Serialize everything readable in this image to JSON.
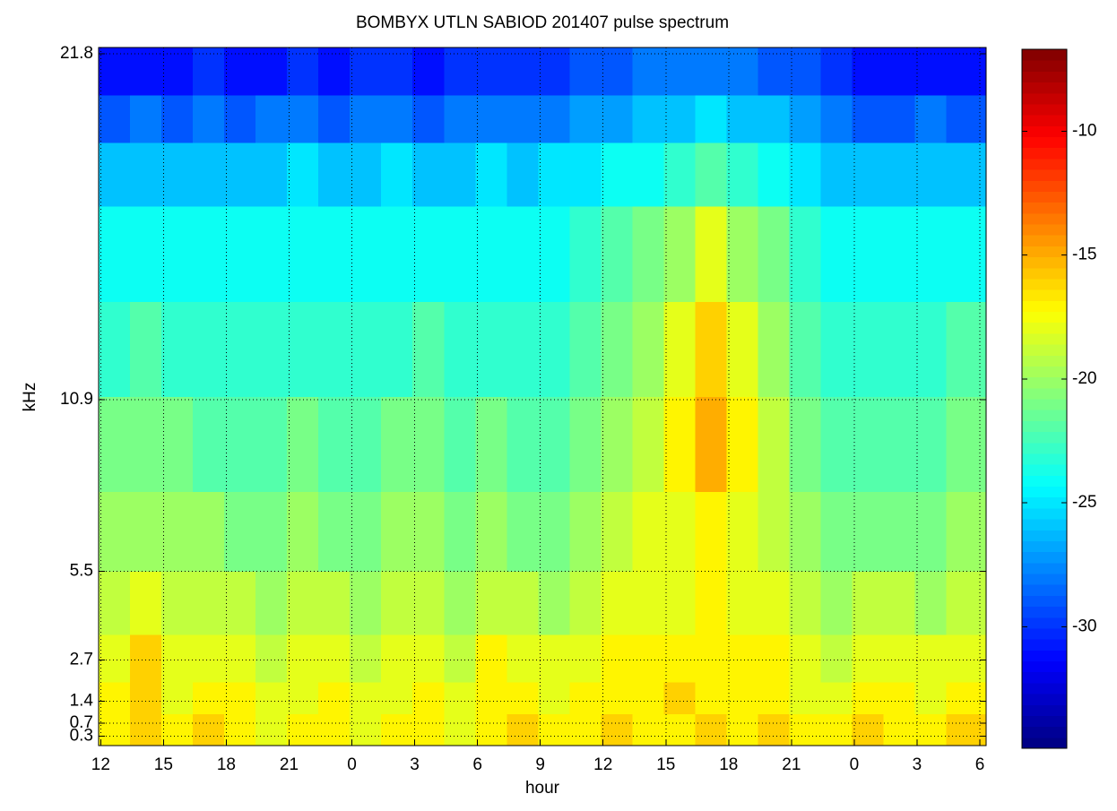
{
  "chart_data": {
    "type": "heatmap",
    "title": "BOMBYX UTLN SABIOD 201407 pulse spectrum",
    "x_label": "hour",
    "y_label": "kHz",
    "colormap": "jet",
    "grid": true,
    "xlim": [
      11.9,
      54.3
    ],
    "xticks": [
      12,
      15,
      18,
      21,
      {
        "value": 24,
        "label": "0"
      },
      {
        "value": 27,
        "label": "3"
      },
      {
        "value": 30,
        "label": "6"
      },
      {
        "value": 33,
        "label": "9"
      },
      {
        "value": 36,
        "label": "12"
      },
      {
        "value": 39,
        "label": "15"
      },
      {
        "value": 42,
        "label": "18"
      },
      {
        "value": 45,
        "label": "21"
      },
      {
        "value": 48,
        "label": "0"
      },
      {
        "value": 51,
        "label": "3"
      },
      {
        "value": 54,
        "label": "6"
      }
    ],
    "ylim": [
      0,
      22
    ],
    "yticks": [
      0.3,
      0.7,
      1.4,
      2.7,
      5.5,
      10.9,
      21.8
    ],
    "clim": [
      -34.9,
      -6.7
    ],
    "cticks": [
      -30,
      -25,
      -20,
      -15,
      -10
    ],
    "xbins": [
      11.9,
      13.4,
      14.9,
      16.4,
      17.9,
      19.4,
      20.9,
      22.4,
      23.9,
      25.4,
      26.9,
      28.4,
      29.9,
      31.4,
      32.9,
      34.4,
      35.9,
      37.4,
      38.9,
      40.4,
      41.9,
      43.4,
      44.9,
      46.4,
      47.9,
      49.4,
      50.9,
      52.4,
      54.3
    ],
    "ybins": [
      0,
      1,
      2,
      3.5,
      5.5,
      8,
      11,
      14,
      17,
      19,
      20.5,
      22
    ],
    "z": [
      [
        -17,
        -16,
        -17,
        -16,
        -17,
        -18,
        -17,
        -17,
        -18,
        -17,
        -17,
        -18,
        -17,
        -16,
        -17,
        -17,
        -16,
        -17,
        -17,
        -16,
        -17,
        -16,
        -17,
        -17,
        -16,
        -17,
        -17,
        -16
      ],
      [
        -17,
        -16,
        -18,
        -17,
        -17,
        -18,
        -18,
        -17,
        -18,
        -18,
        -17,
        -18,
        -17,
        -17,
        -18,
        -17,
        -17,
        -17,
        -16,
        -17,
        -17,
        -17,
        -18,
        -18,
        -17,
        -17,
        -18,
        -17
      ],
      [
        -18,
        -16,
        -18,
        -18,
        -18,
        -19,
        -18,
        -18,
        -19,
        -18,
        -18,
        -19,
        -17,
        -18,
        -18,
        -18,
        -17,
        -17,
        -17,
        -17,
        -17,
        -17,
        -18,
        -19,
        -18,
        -18,
        -18,
        -18
      ],
      [
        -19,
        -18,
        -19,
        -19,
        -19,
        -20,
        -19,
        -19,
        -20,
        -19,
        -19,
        -20,
        -19,
        -19,
        -20,
        -19,
        -18,
        -18,
        -18,
        -17,
        -18,
        -18,
        -19,
        -20,
        -19,
        -19,
        -20,
        -19
      ],
      [
        -20,
        -20,
        -20,
        -20,
        -21,
        -21,
        -20,
        -21,
        -21,
        -20,
        -20,
        -21,
        -20,
        -21,
        -21,
        -20,
        -19,
        -18,
        -18,
        -17,
        -18,
        -19,
        -20,
        -21,
        -21,
        -21,
        -21,
        -20
      ],
      [
        -21,
        -21,
        -21,
        -22,
        -22,
        -22,
        -21,
        -22,
        -22,
        -21,
        -21,
        -22,
        -21,
        -22,
        -22,
        -21,
        -20,
        -19,
        -17,
        -15,
        -17,
        -19,
        -21,
        -22,
        -22,
        -22,
        -22,
        -21
      ],
      [
        -23,
        -22,
        -23,
        -23,
        -23,
        -23,
        -23,
        -23,
        -23,
        -23,
        -22,
        -23,
        -23,
        -23,
        -23,
        -22,
        -21,
        -20,
        -18,
        -16,
        -18,
        -20,
        -22,
        -23,
        -23,
        -23,
        -23,
        -22
      ],
      [
        -24,
        -24,
        -24,
        -24,
        -24,
        -24,
        -24,
        -24,
        -24,
        -24,
        -24,
        -24,
        -24,
        -24,
        -24,
        -23,
        -22,
        -21,
        -20,
        -18,
        -20,
        -21,
        -23,
        -24,
        -24,
        -24,
        -24,
        -24
      ],
      [
        -26,
        -26,
        -26,
        -26,
        -26,
        -26,
        -25,
        -26,
        -26,
        -25,
        -26,
        -26,
        -25,
        -26,
        -25,
        -25,
        -24,
        -24,
        -23,
        -22,
        -23,
        -24,
        -25,
        -26,
        -26,
        -26,
        -26,
        -26
      ],
      [
        -29,
        -28,
        -29,
        -28,
        -29,
        -28,
        -28,
        -29,
        -28,
        -28,
        -29,
        -28,
        -28,
        -28,
        -28,
        -27,
        -27,
        -26,
        -26,
        -25,
        -26,
        -26,
        -27,
        -28,
        -29,
        -29,
        -28,
        -29
      ],
      [
        -31,
        -31,
        -31,
        -30,
        -31,
        -31,
        -30,
        -31,
        -30,
        -30,
        -31,
        -30,
        -30,
        -30,
        -30,
        -29,
        -29,
        -28,
        -28,
        -28,
        -28,
        -29,
        -29,
        -30,
        -31,
        -31,
        -31,
        -31
      ]
    ]
  }
}
